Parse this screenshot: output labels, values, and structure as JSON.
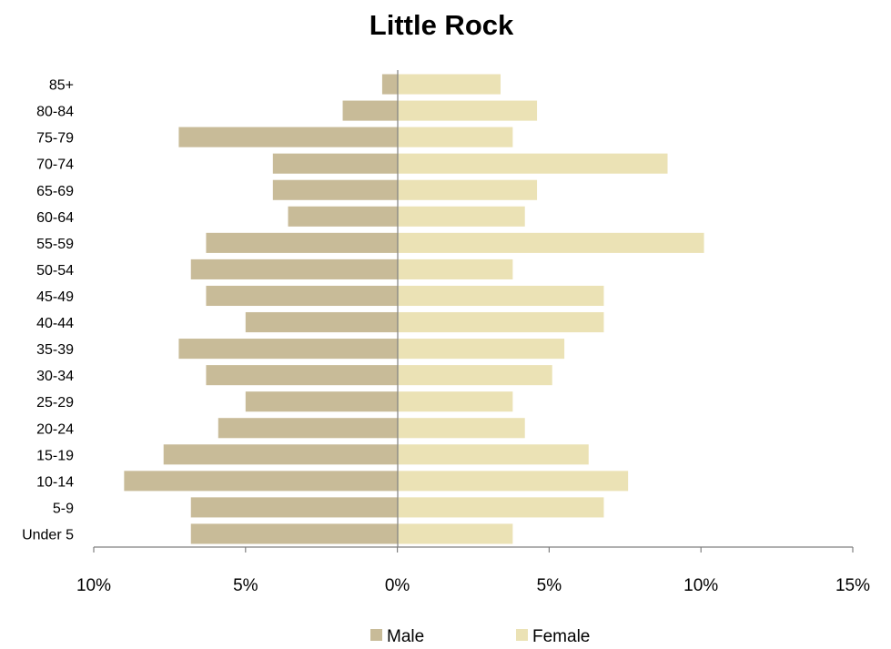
{
  "chart_data": {
    "type": "bar",
    "orientation": "horizontal",
    "title": "Little Rock",
    "categories": [
      "Under 5",
      "5-9",
      "10-14",
      "15-19",
      "20-24",
      "25-29",
      "30-34",
      "35-39",
      "40-44",
      "45-49",
      "50-54",
      "55-59",
      "60-64",
      "65-69",
      "70-74",
      "75-79",
      "80-84",
      "85+"
    ],
    "series": [
      {
        "name": "Male",
        "color": "#c8bb98",
        "values": [
          6.8,
          6.8,
          9.0,
          7.7,
          5.9,
          5.0,
          6.3,
          7.2,
          5.0,
          6.3,
          6.8,
          6.3,
          3.6,
          4.1,
          4.1,
          7.2,
          1.8,
          0.5
        ]
      },
      {
        "name": "Female",
        "color": "#ebe2b5",
        "values": [
          3.8,
          6.8,
          7.6,
          6.3,
          4.2,
          3.8,
          5.1,
          5.5,
          6.8,
          6.8,
          3.8,
          10.1,
          4.2,
          4.6,
          8.9,
          3.8,
          4.6,
          3.4
        ]
      }
    ],
    "xlim": [
      -10,
      15
    ],
    "ticks": [
      -10,
      -5,
      0,
      5,
      10,
      15
    ],
    "tick_labels": [
      "10%",
      "5%",
      "0%",
      "5%",
      "10%",
      "15%"
    ],
    "legend_position": "bottom",
    "grid": false
  }
}
